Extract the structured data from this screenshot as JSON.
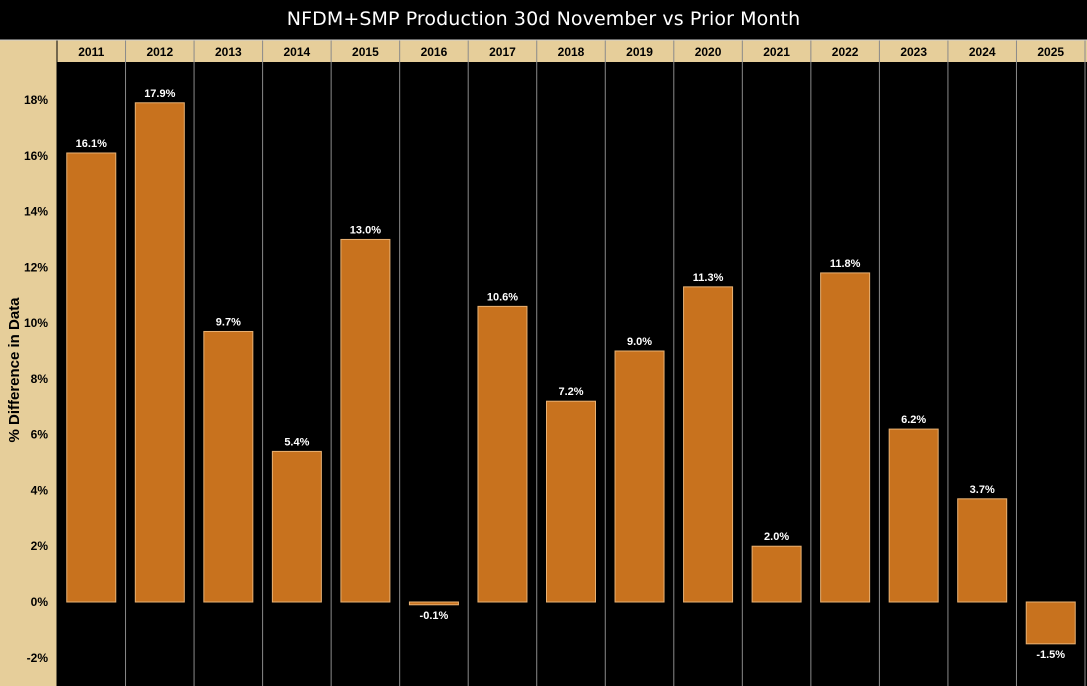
{
  "chart_data": {
    "type": "bar",
    "title": "NFDM+SMP Production 30d November vs Prior Month",
    "xlabel": "",
    "ylabel": "% Difference in Data",
    "categories": [
      "2011",
      "2012",
      "2013",
      "2014",
      "2015",
      "2016",
      "2017",
      "2018",
      "2019",
      "2020",
      "2021",
      "2022",
      "2023",
      "2024",
      "2025"
    ],
    "values": [
      16.1,
      17.9,
      9.7,
      5.4,
      13.0,
      -0.1,
      10.6,
      7.2,
      9.0,
      11.3,
      2.0,
      11.8,
      6.2,
      3.7,
      -1.5
    ],
    "data_labels": [
      "16.1%",
      "17.9%",
      "9.7%",
      "5.4%",
      "13.0%",
      "-0.1%",
      "10.6%",
      "7.2%",
      "9.0%",
      "11.3%",
      "2.0%",
      "11.8%",
      "6.2%",
      "3.7%",
      "-1.5%"
    ],
    "yticks": [
      -2,
      0,
      2,
      4,
      6,
      8,
      10,
      12,
      14,
      16,
      18
    ],
    "ytick_labels": [
      "-2%",
      "0%",
      "2%",
      "4%",
      "6%",
      "8%",
      "10%",
      "12%",
      "14%",
      "16%",
      "18%"
    ],
    "ylim": [
      -3,
      19.5
    ],
    "grid": true,
    "legend": "none",
    "colors": {
      "background": "#000000",
      "bar": "#C8721E",
      "bar_edge": "#E9B274",
      "header_band": "#E6CE9A",
      "grid": "#8a8a8a",
      "text": "#ffffff"
    }
  }
}
